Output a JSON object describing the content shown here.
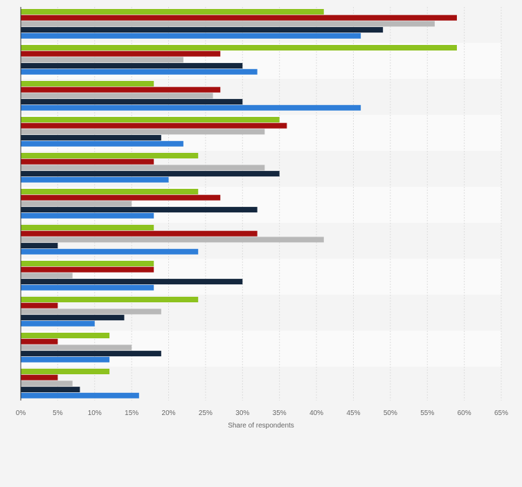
{
  "chart_data": {
    "type": "bar",
    "orientation": "horizontal",
    "categories": [
      "",
      "",
      "",
      "",
      "",
      "",
      "",
      "",
      "",
      "",
      ""
    ],
    "series": [
      {
        "color": "#8dc21f",
        "values": [
          41,
          59,
          18,
          35,
          24,
          24,
          18,
          18,
          24,
          12,
          12
        ]
      },
      {
        "color": "#a50f0f",
        "values": [
          59,
          27,
          27,
          36,
          18,
          27,
          32,
          18,
          5,
          5,
          5
        ]
      },
      {
        "color": "#b8b8b8",
        "values": [
          56,
          22,
          26,
          33,
          33,
          15,
          41,
          7,
          19,
          15,
          7
        ]
      },
      {
        "color": "#14273e",
        "values": [
          49,
          30,
          30,
          19,
          35,
          32,
          5,
          30,
          14,
          19,
          8
        ]
      },
      {
        "color": "#2f7ed8",
        "values": [
          46,
          32,
          46,
          22,
          20,
          18,
          24,
          18,
          10,
          12,
          16
        ]
      }
    ],
    "xlim": [
      0,
      65
    ],
    "xticks": [
      "0%",
      "5%",
      "10%",
      "15%",
      "20%",
      "25%",
      "30%",
      "35%",
      "40%",
      "45%",
      "50%",
      "55%",
      "60%",
      "65%"
    ],
    "xlabel": "Share of respondents",
    "ylabel": "",
    "grid": true,
    "legend": "none"
  }
}
